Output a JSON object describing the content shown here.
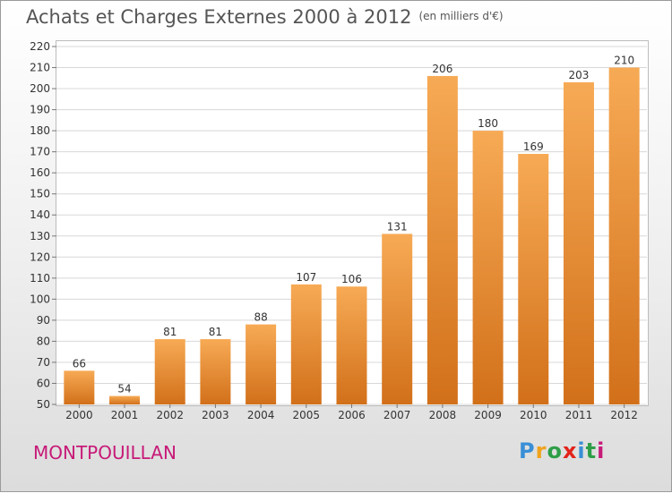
{
  "title": "Achats et Charges Externes 2000 à 2012",
  "unit": "(en milliers d'€)",
  "town": "MONTPOUILLAN",
  "logo": {
    "text": "Proxiti",
    "letters": [
      {
        "ch": "P",
        "color": "#3a8fd6"
      },
      {
        "ch": "r",
        "color": "#f0a31c"
      },
      {
        "ch": "o",
        "color": "#2e9e48"
      },
      {
        "ch": "x",
        "color": "#e2231a"
      },
      {
        "ch": "i",
        "color": "#3a8fd6"
      },
      {
        "ch": "t",
        "color": "#2e9e48"
      },
      {
        "ch": "i",
        "color": "#c71a78"
      }
    ]
  },
  "colors": {
    "bar_top": "#f7aa55",
    "bar_bottom": "#d2701a",
    "grid": "#d8d8d8",
    "text": "#333333",
    "town": "#c71a78"
  },
  "chart_data": {
    "type": "bar",
    "categories": [
      "2000",
      "2001",
      "2002",
      "2003",
      "2004",
      "2005",
      "2006",
      "2007",
      "2008",
      "2009",
      "2010",
      "2011",
      "2012"
    ],
    "values": [
      66,
      54,
      81,
      81,
      88,
      107,
      106,
      131,
      206,
      180,
      169,
      203,
      210
    ],
    "ylim": [
      50,
      220
    ],
    "yticks": [
      50,
      60,
      70,
      80,
      90,
      100,
      110,
      120,
      130,
      140,
      150,
      160,
      170,
      180,
      190,
      200,
      210,
      220
    ],
    "grid": true,
    "data_labels": true
  }
}
